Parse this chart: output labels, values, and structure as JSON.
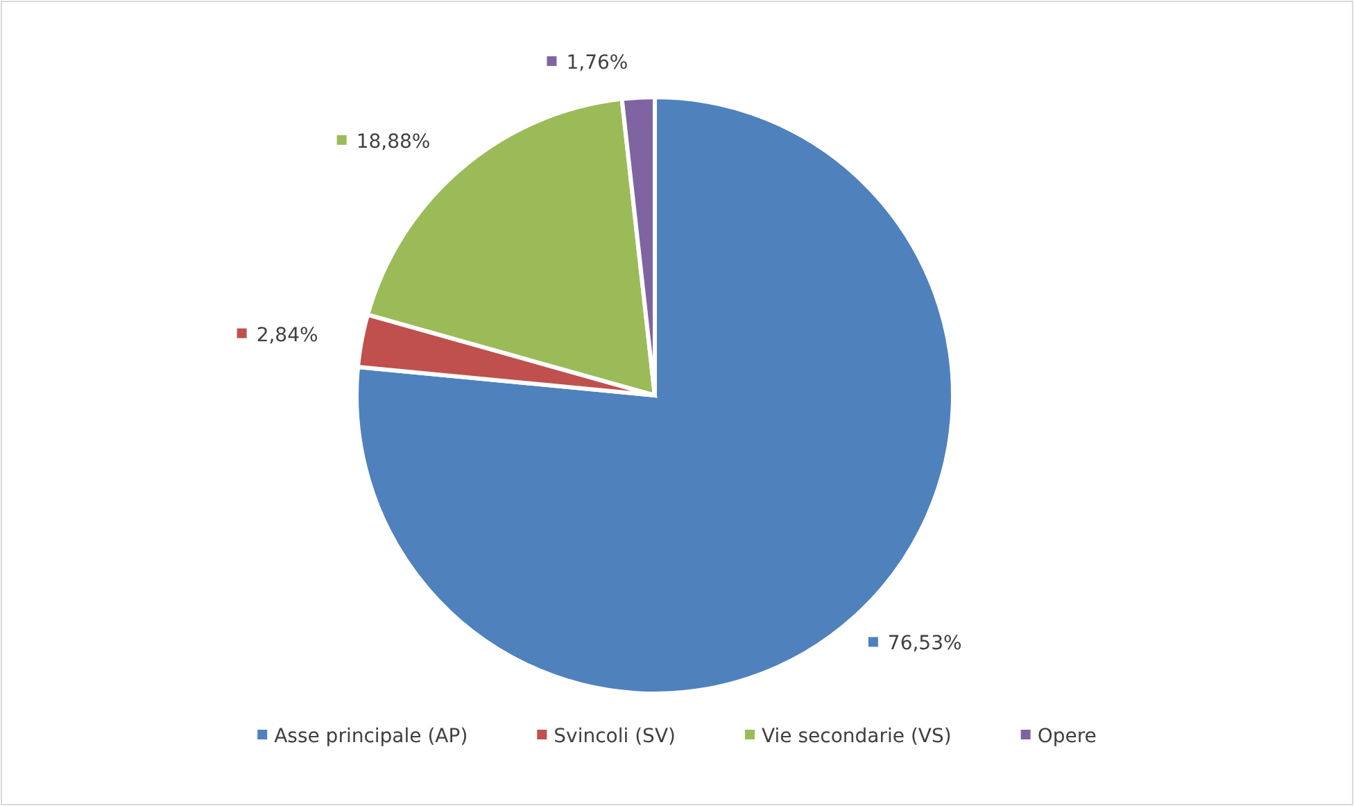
{
  "chart_data": {
    "type": "pie",
    "categories": [
      "Asse principale (AP)",
      "Svincoli (SV)",
      "Vie secondarie (VS)",
      "Opere"
    ],
    "values": [
      76.53,
      2.84,
      18.88,
      1.76
    ],
    "colors": [
      "#4f81bd",
      "#c0504d",
      "#9bbb59",
      "#8064a2"
    ],
    "value_labels": [
      "76,53%",
      "2,84%",
      "18,88%",
      "1,76%"
    ],
    "legend": "bottom"
  }
}
